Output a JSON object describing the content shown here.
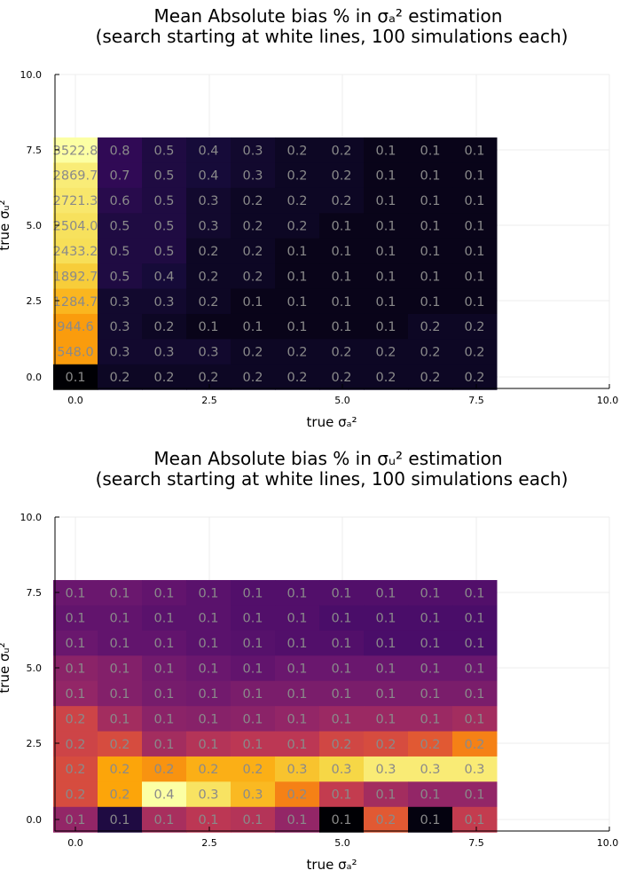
{
  "chart_data": [
    {
      "type": "heatmap",
      "title_line1": "Mean Absolute bias % in σₐ² estimation",
      "title_line2": "(search starting at white lines, 100 simulations each)",
      "xlabel": "true σₐ²",
      "ylabel": "true σᵤ²",
      "xlim": [
        0,
        10
      ],
      "ylim": [
        0,
        10
      ],
      "xticks": [
        "0.0",
        "2.5",
        "5.0",
        "7.5",
        "10.0"
      ],
      "yticks": [
        "0.0",
        "2.5",
        "5.0",
        "7.5",
        "10.0"
      ],
      "grid": true,
      "color_scale": "inferno",
      "color_range": [
        0,
        3522.8
      ],
      "values": [
        [
          "3522.8",
          "0.8",
          "0.5",
          "0.4",
          "0.3",
          "0.2",
          "0.2",
          "0.1",
          "0.1",
          "0.1"
        ],
        [
          "2869.7",
          "0.7",
          "0.5",
          "0.4",
          "0.3",
          "0.2",
          "0.2",
          "0.1",
          "0.1",
          "0.1"
        ],
        [
          "2721.3",
          "0.6",
          "0.5",
          "0.3",
          "0.2",
          "0.2",
          "0.2",
          "0.1",
          "0.1",
          "0.1"
        ],
        [
          "2504.0",
          "0.5",
          "0.5",
          "0.3",
          "0.2",
          "0.2",
          "0.1",
          "0.1",
          "0.1",
          "0.1"
        ],
        [
          "2433.2",
          "0.5",
          "0.5",
          "0.2",
          "0.2",
          "0.1",
          "0.1",
          "0.1",
          "0.1",
          "0.1"
        ],
        [
          "1892.7",
          "0.5",
          "0.4",
          "0.2",
          "0.2",
          "0.1",
          "0.1",
          "0.1",
          "0.1",
          "0.1"
        ],
        [
          "1284.7",
          "0.3",
          "0.3",
          "0.2",
          "0.1",
          "0.1",
          "0.1",
          "0.1",
          "0.1",
          "0.1"
        ],
        [
          "944.6",
          "0.3",
          "0.2",
          "0.1",
          "0.1",
          "0.1",
          "0.1",
          "0.1",
          "0.2",
          "0.2"
        ],
        [
          "548.0",
          "0.3",
          "0.3",
          "0.3",
          "0.2",
          "0.2",
          "0.2",
          "0.2",
          "0.2",
          "0.2"
        ],
        [
          "0.1",
          "0.2",
          "0.2",
          "0.2",
          "0.2",
          "0.2",
          "0.2",
          "0.2",
          "0.2",
          "0.2"
        ]
      ]
    },
    {
      "type": "heatmap",
      "title_line1": "Mean Absolute bias % in σᵤ² estimation",
      "title_line2": "(search starting at white lines, 100 simulations each)",
      "xlabel": "true σₐ²",
      "ylabel": "true σᵤ²",
      "xlim": [
        0,
        10
      ],
      "ylim": [
        0,
        10
      ],
      "xticks": [
        "0.0",
        "2.5",
        "5.0",
        "7.5",
        "10.0"
      ],
      "yticks": [
        "0.0",
        "2.5",
        "5.0",
        "7.5",
        "10.0"
      ],
      "grid": true,
      "color_scale": "inferno",
      "color_levels": [
        [
          0.3,
          0.3,
          0.28,
          0.26,
          0.24,
          0.24,
          0.24,
          0.24,
          0.24,
          0.24
        ],
        [
          0.28,
          0.28,
          0.26,
          0.26,
          0.24,
          0.24,
          0.22,
          0.22,
          0.22,
          0.22
        ],
        [
          0.3,
          0.28,
          0.28,
          0.26,
          0.25,
          0.24,
          0.24,
          0.22,
          0.22,
          0.22
        ],
        [
          0.38,
          0.36,
          0.32,
          0.3,
          0.28,
          0.3,
          0.3,
          0.3,
          0.3,
          0.3
        ],
        [
          0.4,
          0.36,
          0.33,
          0.32,
          0.34,
          0.34,
          0.34,
          0.34,
          0.34,
          0.34
        ],
        [
          0.55,
          0.44,
          0.38,
          0.37,
          0.38,
          0.4,
          0.42,
          0.42,
          0.42,
          0.44
        ],
        [
          0.55,
          0.58,
          0.44,
          0.48,
          0.5,
          0.5,
          0.56,
          0.58,
          0.62,
          0.72
        ],
        [
          0.58,
          0.8,
          0.76,
          0.82,
          0.82,
          0.86,
          0.9,
          0.95,
          0.95,
          0.95
        ],
        [
          0.58,
          0.8,
          1.0,
          0.93,
          0.84,
          0.72,
          0.52,
          0.44,
          0.4,
          0.4
        ],
        [
          0.4,
          0.12,
          0.45,
          0.5,
          0.48,
          0.4,
          0.0,
          0.62,
          0.02,
          0.52
        ]
      ],
      "values": [
        [
          "0.1",
          "0.1",
          "0.1",
          "0.1",
          "0.1",
          "0.1",
          "0.1",
          "0.1",
          "0.1",
          "0.1"
        ],
        [
          "0.1",
          "0.1",
          "0.1",
          "0.1",
          "0.1",
          "0.1",
          "0.1",
          "0.1",
          "0.1",
          "0.1"
        ],
        [
          "0.1",
          "0.1",
          "0.1",
          "0.1",
          "0.1",
          "0.1",
          "0.1",
          "0.1",
          "0.1",
          "0.1"
        ],
        [
          "0.1",
          "0.1",
          "0.1",
          "0.1",
          "0.1",
          "0.1",
          "0.1",
          "0.1",
          "0.1",
          "0.1"
        ],
        [
          "0.1",
          "0.1",
          "0.1",
          "0.1",
          "0.1",
          "0.1",
          "0.1",
          "0.1",
          "0.1",
          "0.1"
        ],
        [
          "0.2",
          "0.1",
          "0.1",
          "0.1",
          "0.1",
          "0.1",
          "0.1",
          "0.1",
          "0.1",
          "0.1"
        ],
        [
          "0.2",
          "0.2",
          "0.1",
          "0.1",
          "0.1",
          "0.1",
          "0.2",
          "0.2",
          "0.2",
          "0.2"
        ],
        [
          "0.2",
          "0.2",
          "0.2",
          "0.2",
          "0.2",
          "0.3",
          "0.3",
          "0.3",
          "0.3",
          "0.3"
        ],
        [
          "0.2",
          "0.2",
          "0.4",
          "0.3",
          "0.3",
          "0.2",
          "0.1",
          "0.1",
          "0.1",
          "0.1"
        ],
        [
          "0.1",
          "0.1",
          "0.1",
          "0.1",
          "0.1",
          "0.1",
          "0.1",
          "0.2",
          "0.1",
          "0.1"
        ]
      ]
    }
  ]
}
